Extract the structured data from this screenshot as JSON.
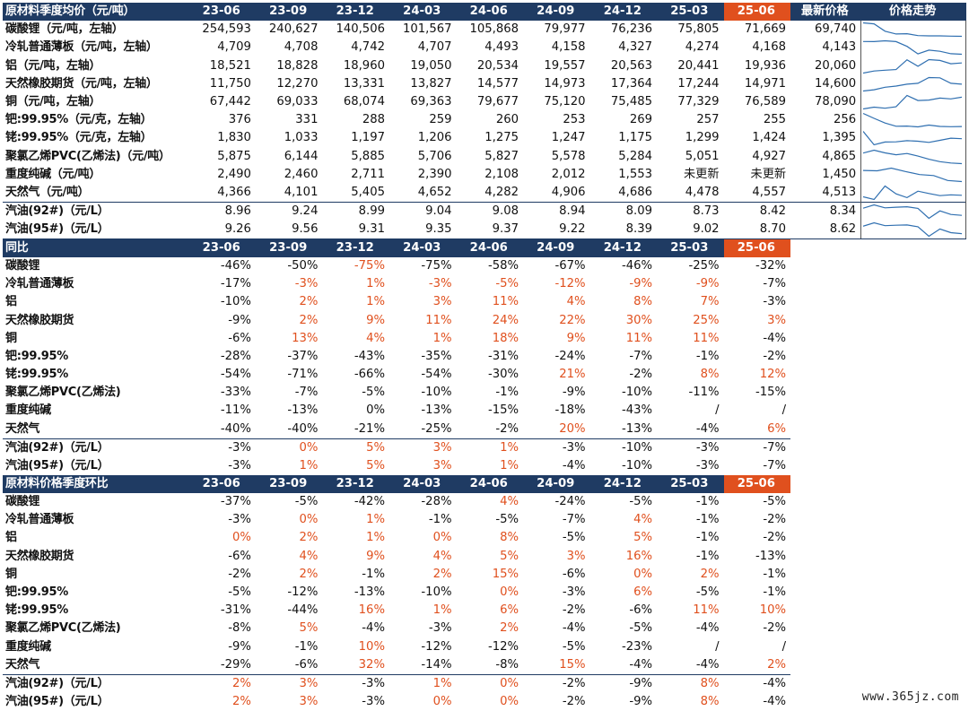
{
  "periods": [
    "23-06",
    "23-09",
    "23-12",
    "24-03",
    "24-06",
    "24-09",
    "24-12",
    "25-03",
    "25-06"
  ],
  "colors": {
    "header_bg": "#1f3b63",
    "highlight": "#e0501e",
    "positive": "#e0501e"
  },
  "price": {
    "title": "原材料季度均价（元/吨）",
    "latest_label": "最新价格",
    "trend_label": "价格走势",
    "rows": [
      {
        "name": "碳酸锂（元/吨，左轴）",
        "values": [
          "254,593",
          "240,627",
          "140,506",
          "101,567",
          "105,868",
          "79,977",
          "76,236",
          "75,805",
          "71,669"
        ],
        "latest": "69,740"
      },
      {
        "name": "冷轧普通薄板（元/吨，左轴）",
        "values": [
          "4,709",
          "4,708",
          "4,742",
          "4,707",
          "4,493",
          "4,158",
          "4,327",
          "4,274",
          "4,168"
        ],
        "latest": "4,143"
      },
      {
        "name": "铝（元/吨，左轴）",
        "values": [
          "18,521",
          "18,828",
          "18,960",
          "19,050",
          "20,534",
          "19,557",
          "20,563",
          "20,441",
          "19,936"
        ],
        "latest": "20,060"
      },
      {
        "name": "天然橡胶期货（元/吨，左轴）",
        "values": [
          "11,750",
          "12,270",
          "13,331",
          "13,827",
          "14,577",
          "14,973",
          "17,364",
          "17,244",
          "14,971"
        ],
        "latest": "14,600"
      },
      {
        "name": "铜（元/吨，左轴）",
        "values": [
          "67,442",
          "69,033",
          "68,074",
          "69,363",
          "79,677",
          "75,120",
          "75,485",
          "77,329",
          "76,589"
        ],
        "latest": "78,090"
      },
      {
        "name": "钯:99.95%（元/克，左轴）",
        "values": [
          "376",
          "331",
          "288",
          "259",
          "260",
          "253",
          "269",
          "257",
          "255"
        ],
        "latest": "256"
      },
      {
        "name": "铑:99.95%（元/克，左轴）",
        "values": [
          "1,830",
          "1,033",
          "1,197",
          "1,206",
          "1,275",
          "1,247",
          "1,175",
          "1,299",
          "1,424"
        ],
        "latest": "1,395"
      },
      {
        "name": "聚氯乙烯PVC(乙烯法)（元/吨）",
        "values": [
          "5,875",
          "6,144",
          "5,885",
          "5,706",
          "5,827",
          "5,578",
          "5,284",
          "5,051",
          "4,927"
        ],
        "latest": "4,865"
      },
      {
        "name": "重度纯碱（元/吨）",
        "values": [
          "2,490",
          "2,460",
          "2,711",
          "2,390",
          "2,108",
          "2,012",
          "1,553",
          "未更新",
          "未更新"
        ],
        "latest": "1,450"
      },
      {
        "name": "天然气（元/吨）",
        "values": [
          "4,366",
          "4,101",
          "5,405",
          "4,652",
          "4,282",
          "4,906",
          "4,686",
          "4,478",
          "4,557"
        ],
        "latest": "4,513"
      },
      {
        "name": "汽油(92#)（元/L）",
        "values": [
          "8.96",
          "9.24",
          "8.99",
          "9.04",
          "9.08",
          "8.94",
          "8.09",
          "8.73",
          "8.42"
        ],
        "latest": "8.34"
      },
      {
        "name": "汽油(95#)（元/L）",
        "values": [
          "9.26",
          "9.56",
          "9.31",
          "9.35",
          "9.37",
          "9.22",
          "8.39",
          "9.02",
          "8.70"
        ],
        "latest": "8.62"
      }
    ]
  },
  "yoy": {
    "title": "同比",
    "rows": [
      {
        "name": "碳酸锂",
        "values": [
          "-46%",
          "-50%",
          "-75%",
          "-75%",
          "-58%",
          "-67%",
          "-46%",
          "-25%",
          "-32%"
        ]
      },
      {
        "name": "冷轧普通薄板",
        "values": [
          "-17%",
          "-3%",
          "1%",
          "-3%",
          "-5%",
          "-12%",
          "-9%",
          "-9%",
          "-7%"
        ]
      },
      {
        "name": "铝",
        "values": [
          "-10%",
          "2%",
          "1%",
          "3%",
          "11%",
          "4%",
          "8%",
          "7%",
          "-3%"
        ]
      },
      {
        "name": "天然橡胶期货",
        "values": [
          "-9%",
          "2%",
          "9%",
          "11%",
          "24%",
          "22%",
          "30%",
          "25%",
          "3%"
        ]
      },
      {
        "name": "铜",
        "values": [
          "-6%",
          "13%",
          "4%",
          "1%",
          "18%",
          "9%",
          "11%",
          "11%",
          "-4%"
        ]
      },
      {
        "name": "钯:99.95%",
        "values": [
          "-28%",
          "-37%",
          "-43%",
          "-35%",
          "-31%",
          "-24%",
          "-7%",
          "-1%",
          "-2%"
        ]
      },
      {
        "name": "铑:99.95%",
        "values": [
          "-54%",
          "-71%",
          "-66%",
          "-54%",
          "-30%",
          "21%",
          "-2%",
          "8%",
          "12%"
        ]
      },
      {
        "name": "聚氯乙烯PVC(乙烯法)",
        "values": [
          "-33%",
          "-7%",
          "-5%",
          "-10%",
          "-1%",
          "-9%",
          "-10%",
          "-11%",
          "-15%"
        ]
      },
      {
        "name": "重度纯碱",
        "values": [
          "-11%",
          "-13%",
          "0%",
          "-13%",
          "-15%",
          "-18%",
          "-43%",
          "/",
          "/"
        ]
      },
      {
        "name": "天然气",
        "values": [
          "-40%",
          "-40%",
          "-21%",
          "-25%",
          "-2%",
          "20%",
          "-13%",
          "-4%",
          "6%"
        ]
      },
      {
        "name": "汽油(92#)（元/L）",
        "values": [
          "-3%",
          "0%",
          "5%",
          "3%",
          "1%",
          "-3%",
          "-10%",
          "-3%",
          "-7%"
        ]
      },
      {
        "name": "汽油(95#)（元/L）",
        "values": [
          "-3%",
          "1%",
          "5%",
          "3%",
          "1%",
          "-4%",
          "-10%",
          "-3%",
          "-7%"
        ]
      }
    ]
  },
  "qoq": {
    "title": "原材料价格季度环比",
    "rows": [
      {
        "name": "碳酸锂",
        "values": [
          "-37%",
          "-5%",
          "-42%",
          "-28%",
          "4%",
          "-24%",
          "-5%",
          "-1%",
          "-5%"
        ]
      },
      {
        "name": "冷轧普通薄板",
        "values": [
          "-3%",
          "0%",
          "1%",
          "-1%",
          "-5%",
          "-7%",
          "4%",
          "-1%",
          "-2%"
        ]
      },
      {
        "name": "铝",
        "values": [
          "0%",
          "2%",
          "1%",
          "0%",
          "8%",
          "-5%",
          "5%",
          "-1%",
          "-2%"
        ]
      },
      {
        "name": "天然橡胶期货",
        "values": [
          "-6%",
          "4%",
          "9%",
          "4%",
          "5%",
          "3%",
          "16%",
          "-1%",
          "-13%"
        ]
      },
      {
        "name": "铜",
        "values": [
          "-2%",
          "2%",
          "-1%",
          "2%",
          "15%",
          "-6%",
          "0%",
          "2%",
          "-1%"
        ]
      },
      {
        "name": "钯:99.95%",
        "values": [
          "-5%",
          "-12%",
          "-13%",
          "-10%",
          "0%",
          "-3%",
          "6%",
          "-5%",
          "-1%"
        ]
      },
      {
        "name": "铑:99.95%",
        "values": [
          "-31%",
          "-44%",
          "16%",
          "1%",
          "6%",
          "-2%",
          "-6%",
          "11%",
          "10%"
        ]
      },
      {
        "name": "聚氯乙烯PVC(乙烯法)",
        "values": [
          "-8%",
          "5%",
          "-4%",
          "-3%",
          "2%",
          "-4%",
          "-5%",
          "-4%",
          "-2%"
        ]
      },
      {
        "name": "重度纯碱",
        "values": [
          "-9%",
          "-1%",
          "10%",
          "-12%",
          "-12%",
          "-5%",
          "-23%",
          "/",
          "/"
        ]
      },
      {
        "name": "天然气",
        "values": [
          "-29%",
          "-6%",
          "32%",
          "-14%",
          "-8%",
          "15%",
          "-4%",
          "-4%",
          "2%"
        ]
      },
      {
        "name": "汽油(92#)（元/L）",
        "values": [
          "2%",
          "3%",
          "-3%",
          "1%",
          "0%",
          "-2%",
          "-9%",
          "8%",
          "-4%"
        ]
      },
      {
        "name": "汽油(95#)（元/L）",
        "values": [
          "2%",
          "3%",
          "-3%",
          "0%",
          "0%",
          "-2%",
          "-9%",
          "8%",
          "-4%"
        ]
      }
    ]
  },
  "red_cells": {
    "yoy": [
      [
        2
      ],
      [
        1,
        2,
        3,
        4,
        5,
        6,
        7
      ],
      [
        1,
        2,
        3,
        4,
        5,
        6,
        7
      ],
      [
        1,
        2,
        3,
        4,
        5,
        6,
        7,
        8
      ],
      [
        1,
        2,
        3,
        4,
        5,
        6,
        7
      ],
      [],
      [
        5,
        7,
        8
      ],
      [],
      [],
      [
        5,
        8
      ],
      [
        1,
        2,
        3,
        4
      ],
      [
        1,
        2,
        3,
        4
      ]
    ],
    "qoq": [
      [
        4
      ],
      [
        1,
        2,
        6
      ],
      [
        0,
        1,
        2,
        3,
        4,
        6
      ],
      [
        1,
        2,
        3,
        4,
        5,
        6
      ],
      [
        1,
        3,
        4,
        6,
        7
      ],
      [
        4,
        6
      ],
      [
        2,
        3,
        4,
        7,
        8
      ],
      [
        1,
        4
      ],
      [
        2
      ],
      [
        2,
        5,
        8
      ],
      [
        0,
        1,
        3,
        4,
        7
      ],
      [
        0,
        1,
        3,
        4,
        7
      ]
    ]
  },
  "watermark": "www.365jz.com"
}
